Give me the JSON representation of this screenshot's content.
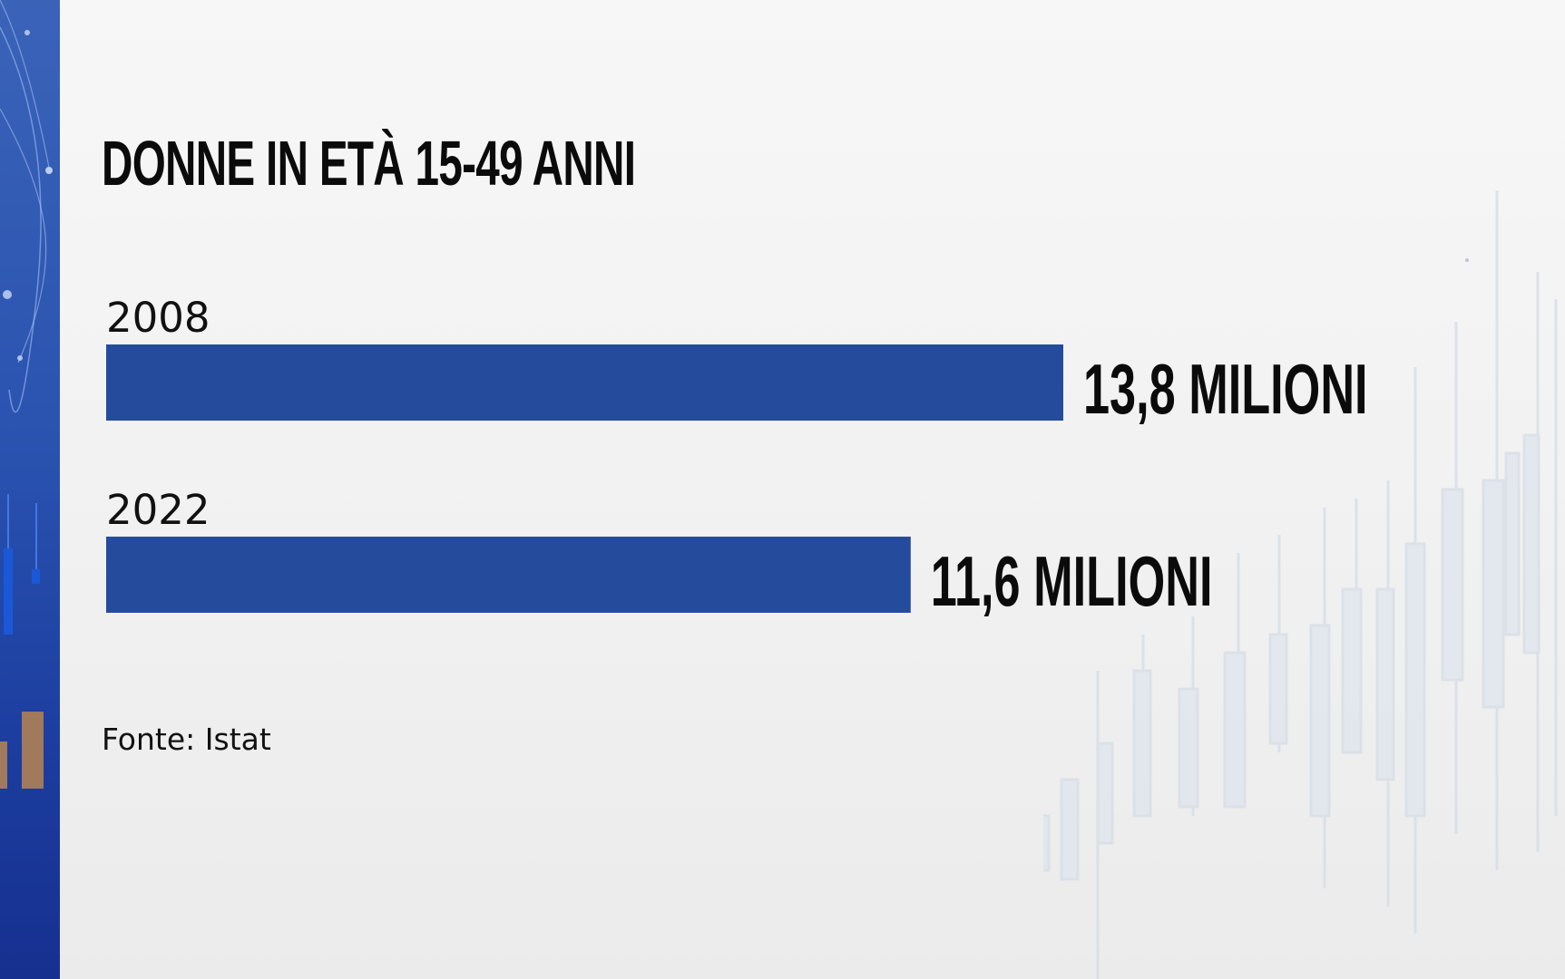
{
  "chart_data": {
    "type": "bar",
    "orientation": "horizontal",
    "title": "DONNE IN ETÀ 15-49 ANNI",
    "categories": [
      "2008",
      "2022"
    ],
    "values": [
      13.8,
      11.6
    ],
    "value_labels": [
      "13,8 MILIONI",
      "11,6 MILIONI"
    ],
    "unit": "milioni",
    "xlim": [
      0,
      13.8
    ],
    "grid": false,
    "legend": "none"
  },
  "source": {
    "prefix": "Fonte:",
    "name": "Istat"
  },
  "colors": {
    "bar": "#254c9c",
    "title": "#0b0b0b",
    "side_strip": "#2a53b0",
    "accent_bar": "#a07a5a"
  }
}
